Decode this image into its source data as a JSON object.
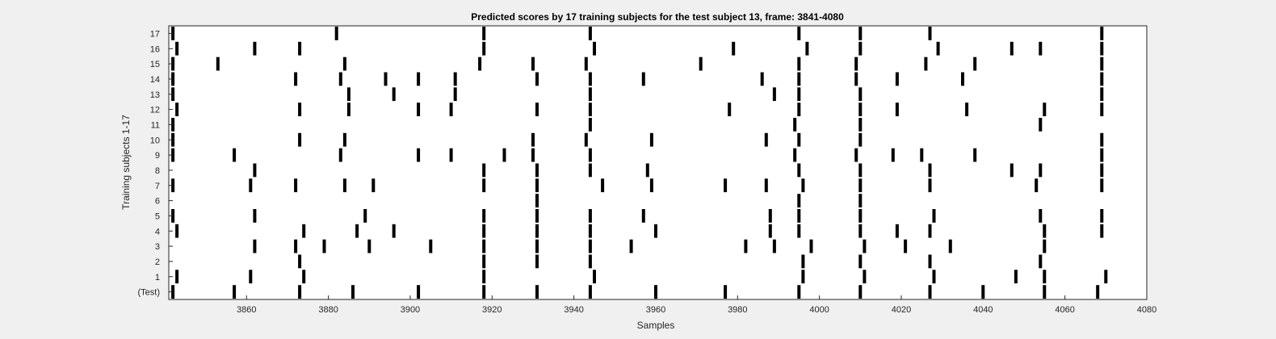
{
  "chart_data": {
    "type": "raster",
    "title": "Predicted scores by 17 training subjects for the test subject 13, frame: 3841-4080",
    "xlabel": "Samples",
    "ylabel": "Training subjects 1-17",
    "xlim": [
      3841,
      4080
    ],
    "xticks": [
      3860,
      3880,
      3900,
      3920,
      3940,
      3960,
      3980,
      4000,
      4020,
      4040,
      4060,
      4080
    ],
    "yticklabels": [
      "(Test)",
      "1",
      "2",
      "3",
      "4",
      "5",
      "6",
      "7",
      "8",
      "9",
      "10",
      "11",
      "12",
      "13",
      "14",
      "15",
      "16",
      "17"
    ],
    "grid": false,
    "legend": "none",
    "series": [
      {
        "row": "(Test)",
        "events": [
          3842,
          3857,
          3873,
          3886,
          3902,
          3918,
          3931,
          3944,
          3960,
          3977,
          3995,
          4010,
          4027,
          4040,
          4055,
          4068
        ]
      },
      {
        "row": "1",
        "events": [
          3843,
          3861,
          3874,
          3918,
          3945,
          3996,
          4011,
          4028,
          4048,
          4055,
          4070
        ]
      },
      {
        "row": "2",
        "events": [
          3873,
          3918,
          3931,
          3944,
          3996,
          4010,
          4027,
          4054
        ]
      },
      {
        "row": "3",
        "events": [
          3862,
          3872,
          3879,
          3890,
          3905,
          3918,
          3931,
          3944,
          3954,
          3982,
          3989,
          3998,
          4011,
          4021,
          4032,
          4055
        ]
      },
      {
        "row": "4",
        "events": [
          3843,
          3874,
          3887,
          3896,
          3918,
          3931,
          3944,
          3960,
          3988,
          3995,
          4010,
          4019,
          4027,
          4055,
          4069
        ]
      },
      {
        "row": "5",
        "events": [
          3842,
          3862,
          3889,
          3918,
          3931,
          3944,
          3957,
          3988,
          3995,
          4010,
          4028,
          4054,
          4069
        ]
      },
      {
        "row": "6",
        "events": [
          3931,
          3995,
          4010
        ]
      },
      {
        "row": "7",
        "events": [
          3842,
          3861,
          3872,
          3884,
          3891,
          3918,
          3931,
          3947,
          3959,
          3977,
          3987,
          3996,
          4010,
          4027,
          4053,
          4069
        ]
      },
      {
        "row": "8",
        "events": [
          3862,
          3918,
          3931,
          3944,
          3958,
          3995,
          4010,
          4027,
          4047,
          4054,
          4069
        ]
      },
      {
        "row": "9",
        "events": [
          3842,
          3857,
          3883,
          3902,
          3910,
          3923,
          3930,
          3944,
          3994,
          4009,
          4018,
          4025,
          4038,
          4069
        ]
      },
      {
        "row": "10",
        "events": [
          3842,
          3873,
          3884,
          3930,
          3943,
          3959,
          3987,
          3995,
          4010,
          4069
        ]
      },
      {
        "row": "11",
        "events": [
          3842,
          3944,
          3994,
          4010,
          4054
        ]
      },
      {
        "row": "12",
        "events": [
          3843,
          3873,
          3885,
          3902,
          3910,
          3931,
          3944,
          3978,
          3995,
          4010,
          4019,
          4036,
          4055,
          4069
        ]
      },
      {
        "row": "13",
        "events": [
          3842,
          3885,
          3896,
          3911,
          3944,
          3989,
          3995,
          4010,
          4069
        ]
      },
      {
        "row": "14",
        "events": [
          3842,
          3872,
          3883,
          3894,
          3902,
          3911,
          3931,
          3944,
          3957,
          3986,
          3995,
          4009,
          4019,
          4035,
          4069
        ]
      },
      {
        "row": "15",
        "events": [
          3842,
          3853,
          3884,
          3917,
          3930,
          3943,
          3971,
          3995,
          4009,
          4026,
          4038,
          4069
        ]
      },
      {
        "row": "16",
        "events": [
          3843,
          3862,
          3873,
          3918,
          3945,
          3979,
          3997,
          4010,
          4029,
          4047,
          4054,
          4069
        ]
      },
      {
        "row": "17",
        "events": [
          3842,
          3882,
          3918,
          3944,
          3995,
          4010,
          4027,
          4069
        ]
      }
    ],
    "colors": {
      "background": "#f0f0f0",
      "plot_area": "#ffffff",
      "mark": "#000000",
      "axis": "#262626"
    }
  }
}
